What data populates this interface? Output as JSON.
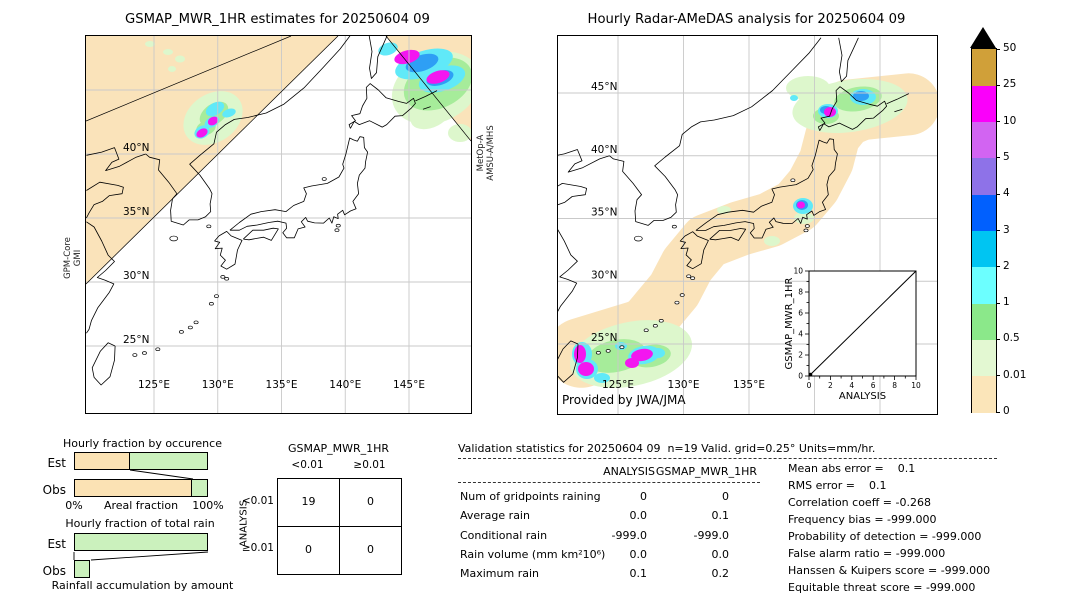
{
  "left_map": {
    "title": "GSMAP_MWR_1HR estimates for 20250604 09",
    "sensor_left": [
      "GPM-Core",
      "GMI"
    ],
    "sensor_right": [
      "MetOp-A",
      "AMSU-A/MHS"
    ],
    "lat_labels": [
      "40°N",
      "35°N",
      "30°N",
      "25°N"
    ],
    "lon_labels": [
      "125°E",
      "130°E",
      "135°E",
      "140°E",
      "145°E"
    ]
  },
  "right_map": {
    "title": "Hourly Radar-AMeDAS analysis for 20250604 09",
    "credit": "Provided by JWA/JMA",
    "lat_labels": [
      "45°N",
      "40°N",
      "35°N",
      "30°N",
      "25°N"
    ],
    "lon_labels": [
      "125°E",
      "130°E",
      "135°E"
    ],
    "inset": {
      "xlabel": "ANALYSIS",
      "ylabel": "GSMAP_MWR_1HR",
      "tick_labels": [
        "0",
        "2",
        "4",
        "6",
        "8",
        "10"
      ]
    }
  },
  "colorbar": {
    "tick_labels": [
      "0",
      "0.01",
      "0.5",
      "1",
      "2",
      "3",
      "4",
      "5",
      "10",
      "25",
      "50"
    ],
    "segment_colors": [
      "#FBE5B9",
      "#E3F8D2",
      "#8BE88A",
      "#6CFFFF",
      "#00C5F2",
      "#0160FE",
      "#8E72E8",
      "#D264F2",
      "#FA00FA",
      "#D0A039"
    ],
    "over_color": "#000000"
  },
  "map_colors": {
    "swath": "#FAE3BA",
    "pale_green": "#DDF7CC",
    "light_green": "#A6EC9A",
    "cyan": "#60E9F8",
    "blue": "#2E9FF5",
    "magenta": "#F316F0"
  },
  "stats": {
    "title": "Validation statistics for 20250604 09  n=19 Valid. grid=0.25° Units=mm/hr.",
    "col_headers": [
      "ANALYSIS",
      "GSMAP_MWR_1HR"
    ],
    "rows": [
      {
        "label": "Num of gridpoints raining",
        "analysis": "0",
        "gsmap": "0"
      },
      {
        "label": "Average rain",
        "analysis": "0.0",
        "gsmap": "0.1"
      },
      {
        "label": "Conditional rain",
        "analysis": "-999.0",
        "gsmap": "-999.0"
      },
      {
        "label": "Rain volume (mm km²10⁶)",
        "analysis": "0.0",
        "gsmap": "0.0"
      },
      {
        "label": "Maximum rain",
        "analysis": "0.1",
        "gsmap": "0.2"
      }
    ],
    "right_lines": [
      "Mean abs error =    0.1",
      "RMS error =    0.1",
      "Correlation coeff = -0.268",
      "Frequency bias = -999.000",
      "Probability of detection = -999.000",
      "False alarm ratio = -999.000",
      "Hanssen & Kuipers score = -999.000",
      "Equitable threat score = -999.000"
    ]
  },
  "chart_data": [
    {
      "type": "bar",
      "title": "Hourly fraction by occurence",
      "orientation": "horizontal",
      "categories": [
        "Est",
        "Obs"
      ],
      "xlabel": "Areal fraction",
      "xtick_labels": [
        "0%",
        "100%"
      ],
      "xlim": [
        0,
        100
      ],
      "series": [
        {
          "name": "fraction 0 to 0.01 mm/hr",
          "values": [
            42,
            89
          ]
        },
        {
          "name": "fraction >= 0.01 mm/hr",
          "values": [
            58,
            11
          ]
        }
      ],
      "colors": {
        "norain": "#FBE2B4",
        "rain": "#CBF1BD"
      }
    },
    {
      "type": "bar",
      "title": "Hourly fraction of total rain",
      "orientation": "horizontal",
      "categories": [
        "Est",
        "Obs"
      ],
      "footer": "Rainfall accumulation by amount",
      "xlim": [
        0,
        100
      ],
      "values": [
        100,
        12
      ],
      "color": "#CBF1BD"
    },
    {
      "type": "table",
      "title": "GSMAP_MWR_1HR",
      "row_axis": "ANALYSIS",
      "col_labels": [
        "<0.01",
        "≥0.01"
      ],
      "row_labels": [
        "<0.01",
        "≥0.01"
      ],
      "cells": [
        [
          19,
          0
        ],
        [
          0,
          0
        ]
      ]
    },
    {
      "type": "scatter",
      "xlabel": "ANALYSIS",
      "ylabel": "GSMAP_MWR_1HR",
      "xlim": [
        0,
        10
      ],
      "ylim": [
        0,
        10
      ],
      "tick_labels": [
        "0",
        "2",
        "4",
        "6",
        "8",
        "10"
      ],
      "points": [
        [
          0,
          0
        ]
      ],
      "reference_line": "y=x"
    }
  ]
}
